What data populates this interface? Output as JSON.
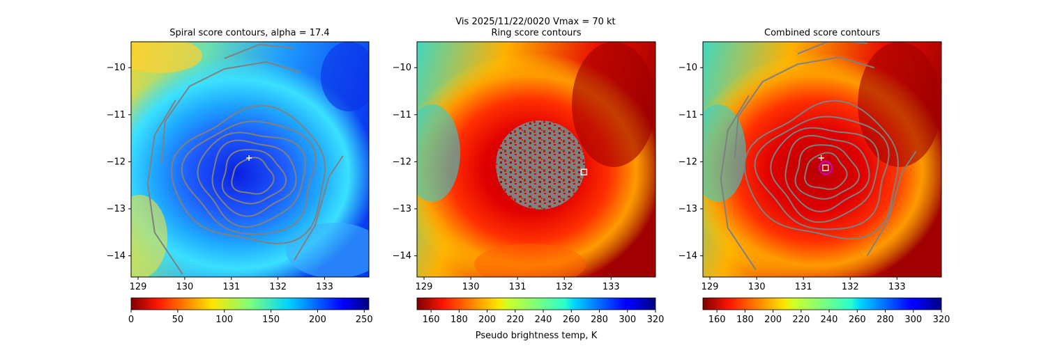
{
  "figure": {
    "suptitle": "Vis  2025/11/22/0020    Vmax = 70 kt"
  },
  "chart_data": [
    {
      "type": "heatmap",
      "title": "Spiral score contours, alpha = 17.4",
      "xlim": [
        128.85,
        133.95
      ],
      "ylim": [
        -14.45,
        -9.45
      ],
      "xticks": [
        "129",
        "130",
        "131",
        "132",
        "133"
      ],
      "yticks": [
        "−10",
        "−11",
        "−12",
        "−13",
        "−14"
      ],
      "colorbar": {
        "range": [
          0,
          255
        ],
        "ticks": [
          "0",
          "50",
          "100",
          "150",
          "200",
          "250"
        ],
        "label": "",
        "colormap": "jet",
        "reversed": false
      },
      "markers": [
        {
          "shape": "plus",
          "x": 131.38,
          "y": -11.92,
          "color": "#ffffff"
        }
      ],
      "contour_center": {
        "x": 131.45,
        "y": -12.32
      },
      "contour_color": "#808080"
    },
    {
      "type": "heatmap",
      "title": "Ring score contours",
      "xlim": [
        128.85,
        133.95
      ],
      "ylim": [
        -14.45,
        -9.45
      ],
      "xticks": [
        "129",
        "130",
        "131",
        "132",
        "133"
      ],
      "yticks": [
        "−10",
        "−11",
        "−12",
        "−13",
        "−14"
      ],
      "colorbar": {
        "range": [
          150,
          320
        ],
        "ticks": [
          "160",
          "180",
          "200",
          "220",
          "240",
          "260",
          "280",
          "300",
          "320"
        ],
        "label": "Pseudo brightness temp, K",
        "colormap": "jet",
        "reversed": true
      },
      "markers": [
        {
          "shape": "square",
          "x": 132.42,
          "y": -12.22,
          "color": "#ffffff"
        }
      ],
      "ring_region": {
        "center_x": 131.6,
        "center_y": -12.35,
        "radius_deg": 0.95
      },
      "contour_color": "#808080"
    },
    {
      "type": "heatmap",
      "title": "Combined score contours",
      "xlim": [
        128.85,
        133.95
      ],
      "ylim": [
        -14.45,
        -9.45
      ],
      "xticks": [
        "129",
        "130",
        "131",
        "132",
        "133"
      ],
      "yticks": [
        "−10",
        "−11",
        "−12",
        "−13",
        "−14"
      ],
      "colorbar": {
        "range": [
          150,
          320
        ],
        "ticks": [
          "160",
          "180",
          "200",
          "220",
          "240",
          "260",
          "280",
          "300",
          "320"
        ],
        "label": "",
        "colormap": "jet",
        "reversed": true
      },
      "markers": [
        {
          "shape": "plus",
          "x": 131.38,
          "y": -11.92,
          "color": "#ffffff"
        },
        {
          "shape": "square",
          "x": 131.47,
          "y": -12.13,
          "color": "#ffffff"
        },
        {
          "shape": "circle",
          "x": 131.47,
          "y": -12.13,
          "color": "#cc00cc"
        }
      ],
      "contour_center": {
        "x": 131.47,
        "y": -12.22
      },
      "contour_color": "#808080"
    }
  ]
}
